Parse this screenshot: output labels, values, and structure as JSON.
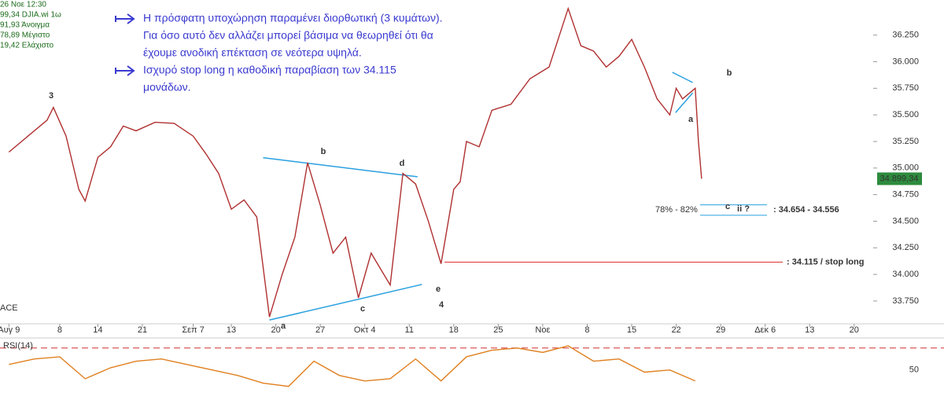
{
  "chart_data": [
    {
      "type": "line",
      "legend_lines": [
        "26 Νοε 12:30",
        "99,34 DJIA.wi 1ω",
        "91,93 Άνοιγμα",
        "78,89 Μέγιστο",
        "19,42 Ελάχιστο"
      ],
      "notes": [
        "Η πρόσφατη υποχώρηση παραμένει διορθωτική (3 κυμάτων).",
        "Για όσο αυτό δεν αλλάζει μπορεί βάσιμα να θεωρηθεί ότι θα",
        "έχουμε ανοδική επέκταση σε νεότερα υψηλά.",
        "Ισχυρό stop long η καθοδική παραβίαση των 34.115",
        "μονάδων."
      ],
      "wave_labels": [
        "3",
        "a",
        "b",
        "c",
        "d",
        "e",
        "4",
        "a",
        "b",
        "c",
        "ii ?"
      ],
      "watermark": "ACE",
      "series": [
        {
          "name": "DJIA.wi",
          "color": "#b03030",
          "x": [
            0,
            3,
            6,
            7,
            9,
            11,
            12,
            14,
            16,
            18,
            20,
            23,
            26,
            29,
            31,
            33,
            35,
            37,
            39,
            41,
            43,
            45,
            47,
            49,
            51,
            53,
            55,
            57,
            59,
            60,
            62,
            64,
            66,
            68,
            70,
            71,
            72,
            74,
            76,
            79,
            82,
            85,
            88,
            90,
            92,
            94,
            96,
            98,
            100,
            102,
            104,
            105,
            106,
            107,
            108,
            108.5,
            109
          ],
          "values": [
            35150,
            35300,
            35450,
            35570,
            35300,
            34800,
            34690,
            35100,
            35200,
            35395,
            35350,
            35430,
            35420,
            35300,
            35134,
            34950,
            34613,
            34700,
            34540,
            33600,
            34000,
            34350,
            35050,
            34650,
            34200,
            34350,
            33780,
            34200,
            34000,
            33900,
            34950,
            34850,
            34500,
            34100,
            34800,
            34870,
            35250,
            35200,
            35543,
            35600,
            35840,
            35950,
            36500,
            36150,
            36100,
            35950,
            36050,
            36210,
            35950,
            35650,
            35500,
            35750,
            35650,
            35700,
            35750,
            35250,
            34899.34
          ]
        }
      ],
      "last_price": {
        "value": 34899.34,
        "label": "34.899,34"
      },
      "trendlines": [
        {
          "x": [
            40,
            64.3
          ],
          "y": [
            35097,
            34918
          ]
        },
        {
          "x": [
            41,
            65
          ],
          "y": [
            33571,
            33906
          ]
        },
        {
          "x": [
            104.4,
            107.6
          ],
          "y": [
            35900,
            35804
          ]
        },
        {
          "x": [
            104.9,
            107.6
          ],
          "y": [
            35521,
            35707
          ]
        }
      ],
      "stop_level": {
        "value": 34115,
        "label": ": 34.115 / stop long"
      },
      "fib_zone": {
        "values": [
          34654,
          34556
        ],
        "label": ": 34.654 - 34.556",
        "ratio_label": "78% - 82%"
      },
      "xlim": [
        -1.4,
        136
      ],
      "xticks": [
        {
          "value": 0,
          "label": "Αυγ 9"
        },
        8,
        14,
        21,
        {
          "value": 29,
          "label": "Σεπ 7"
        },
        {
          "value": 35,
          "label": "13"
        },
        {
          "value": 42,
          "label": "20"
        },
        {
          "value": 49,
          "label": "27"
        },
        {
          "value": 56,
          "label": "Οκτ 4"
        },
        {
          "value": 63,
          "label": "11"
        },
        {
          "value": 70,
          "label": "18"
        },
        {
          "value": 77,
          "label": "25"
        },
        {
          "value": 84,
          "label": "Νοε"
        },
        {
          "value": 91,
          "label": "8"
        },
        {
          "value": 98,
          "label": "15"
        },
        {
          "value": 105,
          "label": "22"
        },
        {
          "value": 112,
          "label": "29"
        },
        {
          "value": 119,
          "label": "Δεκ 6"
        },
        {
          "value": 126,
          "label": "13"
        },
        {
          "value": 133,
          "label": "20"
        }
      ],
      "ylim": [
        33550,
        36580
      ],
      "yticks": [
        {
          "value": 33750,
          "label": "33.750"
        },
        {
          "value": 34000,
          "label": "34.000"
        },
        {
          "value": 34250,
          "label": "34.250"
        },
        {
          "value": 34500,
          "label": "34.500"
        },
        {
          "value": 34750,
          "label": "34.750"
        },
        {
          "value": 35000,
          "label": "35.000"
        },
        {
          "value": 35250,
          "label": "35.250"
        },
        {
          "value": 35500,
          "label": "35.500"
        },
        {
          "value": 35750,
          "label": "35.750"
        },
        {
          "value": 36000,
          "label": "36.000"
        },
        {
          "value": 36250,
          "label": "36.250"
        }
      ]
    },
    {
      "type": "line",
      "title": "RSI(14)",
      "series": [
        {
          "name": "RSI(14)",
          "color": "#e08020",
          "x": [
            0,
            4,
            8,
            12,
            16,
            20,
            24,
            28,
            32,
            36,
            40,
            44,
            48,
            52,
            56,
            60,
            64,
            68,
            72,
            76,
            80,
            84,
            88,
            92,
            96,
            100,
            104,
            108
          ],
          "values": [
            55,
            60,
            62,
            42,
            52,
            58,
            60,
            55,
            50,
            45,
            38,
            35,
            58,
            45,
            40,
            42,
            60,
            40,
            62,
            68,
            70,
            66,
            72,
            58,
            60,
            48,
            50,
            40
          ]
        }
      ],
      "level": 70,
      "ylim": [
        29,
        77
      ],
      "yticks": [
        50
      ]
    }
  ]
}
